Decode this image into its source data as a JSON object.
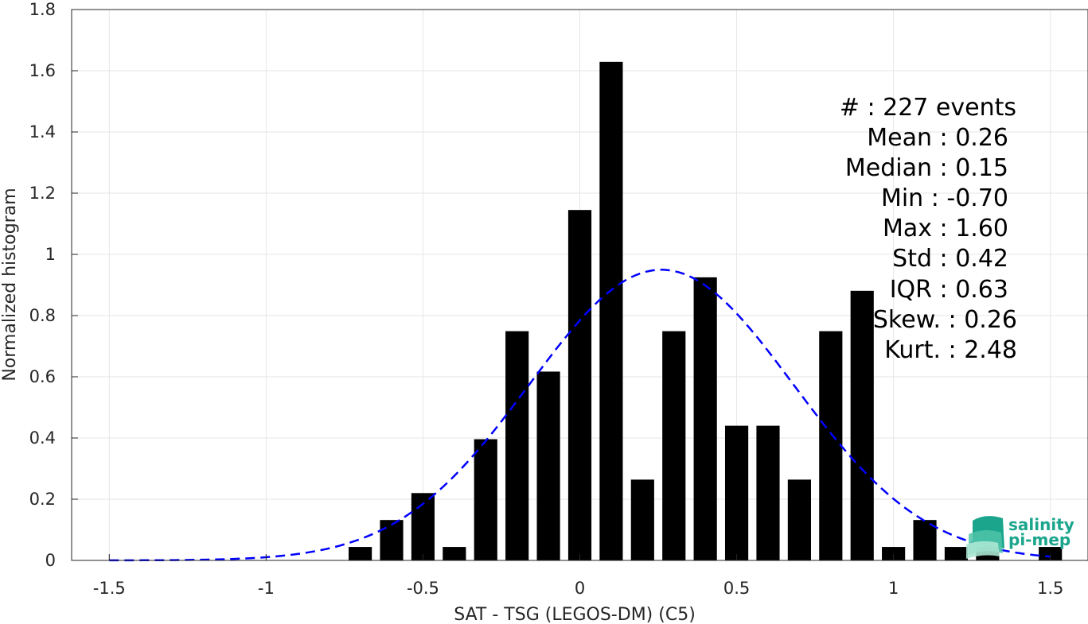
{
  "chart_data": {
    "type": "bar",
    "xlabel": "SAT - TSG (LEGOS-DM) (C5)",
    "ylabel": "Normalized histogram",
    "xlim": [
      -1.62,
      1.62
    ],
    "ylim": [
      0,
      1.8
    ],
    "grid": true,
    "x_ticks": [
      "-1.5",
      "-1",
      "-0.5",
      "0",
      "0.5",
      "1",
      "1.5"
    ],
    "x_tick_values": [
      -1.5,
      -1,
      -0.5,
      0,
      0.5,
      1,
      1.5
    ],
    "y_ticks": [
      "0",
      "0.2",
      "0.4",
      "0.6",
      "0.8",
      "1",
      "1.2",
      "1.4",
      "1.6",
      "1.8"
    ],
    "y_tick_values": [
      0,
      0.2,
      0.4,
      0.6,
      0.8,
      1,
      1.2,
      1.4,
      1.6,
      1.8
    ],
    "bar_color": "#000000",
    "bin_width": 0.1,
    "bin_centers": [
      -0.7,
      -0.6,
      -0.5,
      -0.4,
      -0.3,
      -0.2,
      -0.1,
      0.0,
      0.1,
      0.2,
      0.3,
      0.4,
      0.5,
      0.6,
      0.7,
      0.8,
      0.9,
      1.0,
      1.1,
      1.2,
      1.3,
      1.4,
      1.5
    ],
    "values": [
      0.044,
      0.132,
      0.22,
      0.044,
      0.396,
      0.749,
      0.617,
      1.145,
      1.629,
      0.264,
      0.749,
      0.925,
      0.44,
      0.44,
      0.264,
      0.749,
      0.881,
      0.044,
      0.132,
      0.044,
      0.044,
      0.0,
      0.044
    ],
    "fit_curve": {
      "type": "normal",
      "mean": 0.26,
      "std": 0.42,
      "color": "#0000ff",
      "style": "dashed",
      "x_range": [
        -1.5,
        1.5
      ]
    }
  },
  "stats_text": [
    "#  : 227 events",
    "Mean : 0.26",
    "Median : 0.15",
    "Min : -0.70",
    "Max : 1.60",
    "Std : 0.42",
    "IQR : 0.63",
    "Skew. : 0.26",
    "Kurt. : 2.48"
  ],
  "logo": {
    "line1": "salinity",
    "line2": "pi-mep",
    "color": "#1aa58c"
  }
}
